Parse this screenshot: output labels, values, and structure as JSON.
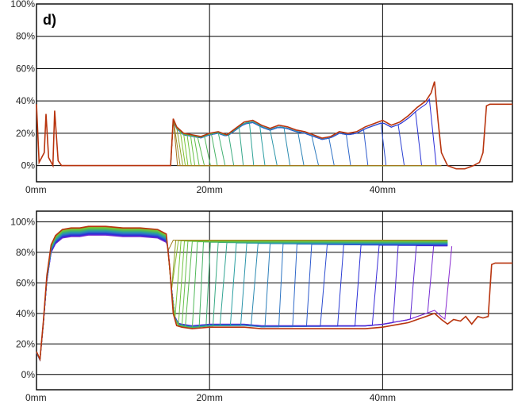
{
  "panel_label": "d)",
  "chart_data": [
    {
      "type": "line",
      "title": "",
      "xlabel": "",
      "ylabel": "",
      "x_unit": "mm",
      "xlim": [
        0,
        55
      ],
      "ylim": [
        -10,
        100
      ],
      "grid": true,
      "x_ticks": [
        {
          "value": 0,
          "label": "0mm"
        },
        {
          "value": 20,
          "label": "20mm"
        },
        {
          "value": 40,
          "label": "40mm"
        }
      ],
      "y_ticks": [
        {
          "value": 0,
          "label": "0%"
        },
        {
          "value": 20,
          "label": "20%"
        },
        {
          "value": 40,
          "label": "40%"
        },
        {
          "value": 60,
          "label": "60%"
        },
        {
          "value": 80,
          "label": "80%"
        },
        {
          "value": 100,
          "label": "100%"
        }
      ],
      "color_gradient": [
        "#2a2ad8",
        "#2f6fc8",
        "#2aa0a0",
        "#4fb85a",
        "#7ec832",
        "#c03a10"
      ],
      "front_positions_mm": [
        15.8,
        16.1,
        16.4,
        16.7,
        17.0,
        17.4,
        17.8,
        18.3,
        18.9,
        19.6,
        20.4,
        21.3,
        22.3,
        23.4,
        24.6,
        25.9,
        27.3,
        28.8,
        30.4,
        32.1,
        33.9,
        35.8,
        37.8,
        39.9,
        42.0,
        44.0,
        45.7
      ],
      "curve": {
        "x": [
          0,
          0.3,
          0.9,
          1.1,
          1.4,
          1.9,
          2.1,
          2.5,
          2.9,
          15.5,
          15.8,
          16.2,
          17,
          18,
          19,
          20,
          21,
          22,
          23,
          24,
          25,
          26,
          27,
          28,
          29,
          30,
          31,
          32,
          33,
          34,
          35,
          36,
          37,
          38,
          39,
          40,
          41,
          42,
          43,
          44,
          45,
          45.6,
          46,
          46.4,
          46.8,
          47.5,
          48.5,
          49.5,
          50.5,
          51.2,
          51.6,
          52.0,
          52.4,
          53,
          54,
          55
        ],
        "y": [
          38,
          2,
          8,
          32,
          5,
          0,
          34,
          3,
          0,
          0,
          29,
          24,
          20,
          19,
          18,
          20,
          21,
          19,
          23,
          27,
          28,
          25,
          23,
          25,
          24,
          22,
          21,
          19,
          17,
          18,
          21,
          20,
          21,
          24,
          26,
          28,
          25,
          27,
          31,
          36,
          40,
          45,
          52,
          28,
          8,
          0,
          -2,
          -2,
          0,
          2,
          8,
          37,
          38,
          38,
          38,
          38
        ]
      }
    },
    {
      "type": "line",
      "title": "",
      "xlabel": "",
      "ylabel": "",
      "x_unit": "mm",
      "xlim": [
        0,
        55
      ],
      "ylim": [
        -10,
        107
      ],
      "grid": true,
      "x_ticks": [
        {
          "value": 0,
          "label": "0mm"
        },
        {
          "value": 20,
          "label": "20mm"
        },
        {
          "value": 40,
          "label": "40mm"
        }
      ],
      "y_ticks": [
        {
          "value": 0,
          "label": "0%"
        },
        {
          "value": 20,
          "label": "20%"
        },
        {
          "value": 40,
          "label": "40%"
        },
        {
          "value": 60,
          "label": "60%"
        },
        {
          "value": 80,
          "label": "80%"
        },
        {
          "value": 100,
          "label": "100%"
        }
      ],
      "color_gradient": [
        "#8a2ad0",
        "#2a2ad8",
        "#2f6fc8",
        "#2aa0a0",
        "#4fb85a",
        "#7ec832",
        "#c03a10"
      ],
      "front_positions_mm": [
        15.3,
        15.6,
        15.9,
        16.2,
        16.6,
        17.0,
        17.5,
        18.1,
        18.8,
        19.6,
        20.5,
        21.5,
        22.6,
        23.8,
        25.1,
        26.5,
        28.0,
        29.6,
        31.3,
        33.1,
        35.0,
        37.0,
        39.1,
        41.3,
        43.4,
        45.4,
        47.5
      ],
      "curve": {
        "x": [
          0,
          0.4,
          0.8,
          1.2,
          1.7,
          2.2,
          3,
          4,
          5,
          6,
          8,
          10,
          12,
          14,
          15,
          15.4,
          15.8,
          16.2,
          16.8,
          18,
          20,
          22,
          24,
          26,
          28,
          30,
          32,
          34,
          36,
          38,
          40,
          41,
          42,
          43,
          44,
          45,
          46,
          46.8,
          47.5,
          48.2,
          49,
          49.6,
          50.3,
          51,
          51.6,
          52.2,
          52.6,
          53,
          54,
          55
        ],
        "y": [
          15,
          10,
          35,
          65,
          85,
          91,
          95,
          96,
          96,
          97,
          97,
          96,
          96,
          95,
          92,
          70,
          40,
          32,
          31,
          30,
          31,
          31,
          31,
          30,
          30,
          30,
          30,
          30,
          30,
          30,
          31,
          32,
          33,
          34,
          36,
          38,
          40,
          36,
          33,
          36,
          35,
          38,
          33,
          38,
          37,
          38,
          72,
          73,
          73,
          73
        ]
      }
    }
  ]
}
